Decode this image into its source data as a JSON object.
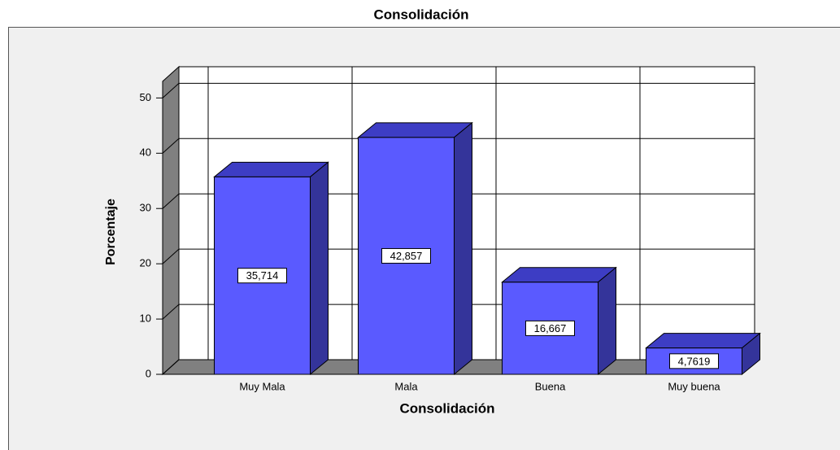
{
  "chart_data": {
    "type": "bar3d",
    "title": "Consolidación",
    "x_label": "Consolidación",
    "y_label": "Porcentaje",
    "categories": [
      "Muy Mala",
      "Mala",
      "Buena",
      "Muy buena"
    ],
    "values": [
      35.714,
      42.857,
      16.667,
      4.7619
    ],
    "value_labels": [
      "35,714",
      "42,857",
      "16,667",
      "4,7619"
    ],
    "color": "#5a5aff",
    "ylim": [
      0,
      53
    ],
    "yticks": [
      0,
      10,
      20,
      30,
      40,
      50
    ],
    "grid": true
  }
}
